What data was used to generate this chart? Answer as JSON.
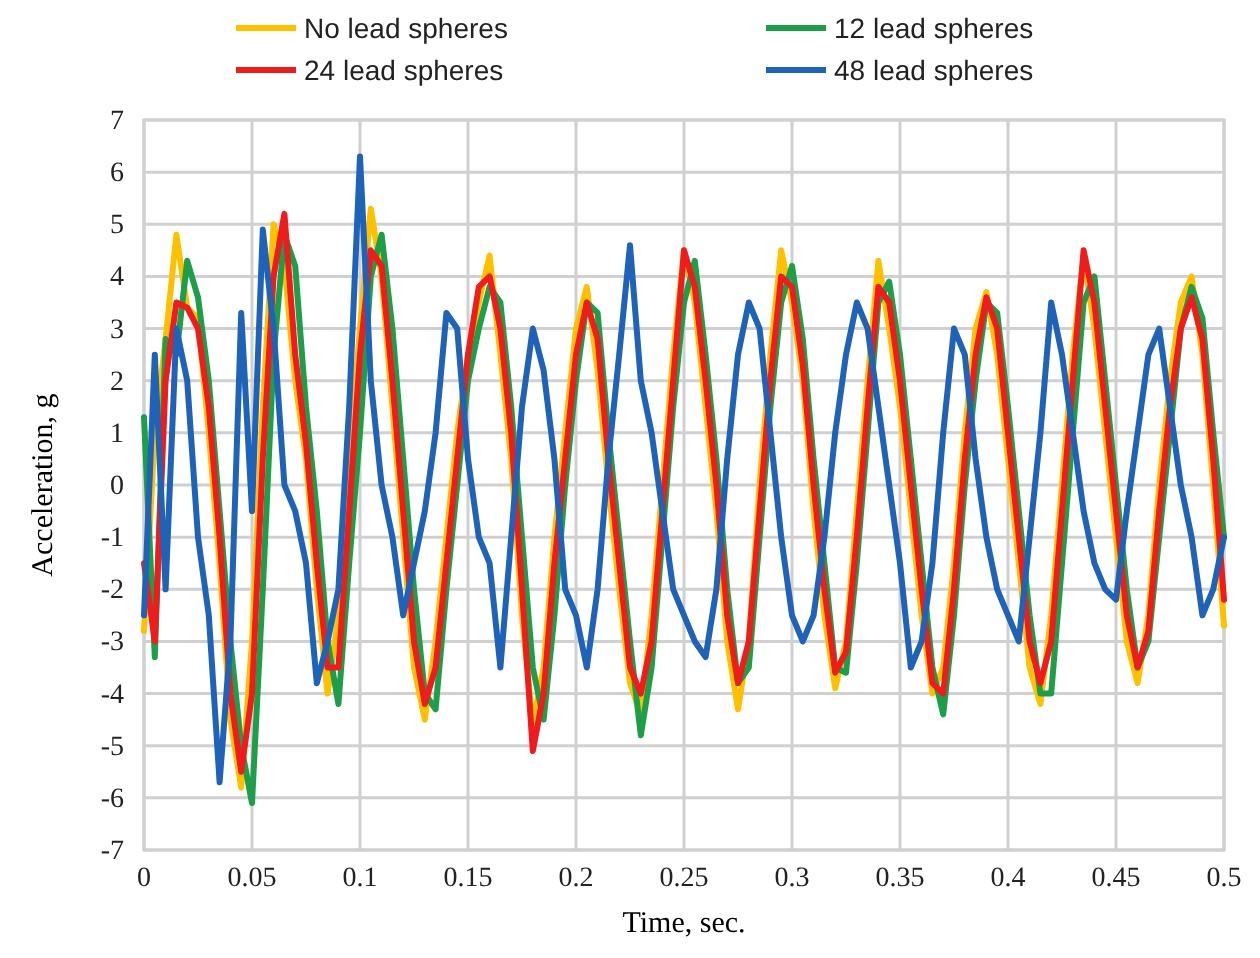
{
  "chart_data": {
    "type": "line",
    "xlabel": "Time, sec.",
    "ylabel": "Acceleration, g",
    "x": [
      0,
      0.005,
      0.01,
      0.015,
      0.02,
      0.025,
      0.03,
      0.035,
      0.04,
      0.045,
      0.05,
      0.055,
      0.06,
      0.065,
      0.07,
      0.075,
      0.08,
      0.085,
      0.09,
      0.095,
      0.1,
      0.105,
      0.11,
      0.115,
      0.12,
      0.125,
      0.13,
      0.135,
      0.14,
      0.145,
      0.15,
      0.155,
      0.16,
      0.165,
      0.17,
      0.175,
      0.18,
      0.185,
      0.19,
      0.195,
      0.2,
      0.205,
      0.21,
      0.215,
      0.22,
      0.225,
      0.23,
      0.235,
      0.24,
      0.245,
      0.25,
      0.255,
      0.26,
      0.265,
      0.27,
      0.275,
      0.28,
      0.285,
      0.29,
      0.295,
      0.3,
      0.305,
      0.31,
      0.315,
      0.32,
      0.325,
      0.33,
      0.335,
      0.34,
      0.345,
      0.35,
      0.355,
      0.36,
      0.365,
      0.37,
      0.375,
      0.38,
      0.385,
      0.39,
      0.395,
      0.4,
      0.405,
      0.41,
      0.415,
      0.42,
      0.425,
      0.43,
      0.435,
      0.44,
      0.445,
      0.45,
      0.455,
      0.46,
      0.465,
      0.47,
      0.475,
      0.48,
      0.485,
      0.49,
      0.495,
      0.5
    ],
    "series": [
      {
        "name": "No lead spheres",
        "color": "#ffc000",
        "values": [
          -2.8,
          1.0,
          2.8,
          4.8,
          3.4,
          3.2,
          1.0,
          -1.5,
          -4.5,
          -5.8,
          -3.0,
          1.5,
          5.0,
          4.2,
          2.0,
          0.5,
          -2.0,
          -4.0,
          -2.5,
          0.5,
          3.0,
          5.3,
          4.0,
          1.5,
          -1.0,
          -3.5,
          -4.5,
          -3.0,
          -1.0,
          1.0,
          2.5,
          3.5,
          4.4,
          2.5,
          0.5,
          -2.5,
          -4.6,
          -3.5,
          -1.0,
          1.0,
          3.0,
          3.8,
          2.2,
          0.0,
          -2.0,
          -3.8,
          -4.4,
          -2.5,
          0.0,
          2.5,
          4.5,
          3.5,
          1.5,
          -0.5,
          -3.0,
          -4.3,
          -3.0,
          0.0,
          2.5,
          4.5,
          3.5,
          2.0,
          -0.5,
          -2.5,
          -3.9,
          -3.0,
          -0.5,
          2.0,
          4.3,
          3.0,
          1.5,
          -0.5,
          -2.5,
          -4.0,
          -3.5,
          -1.5,
          1.0,
          3.0,
          3.7,
          2.5,
          0.5,
          -1.5,
          -3.5,
          -4.2,
          -2.5,
          0.0,
          2.5,
          4.4,
          3.0,
          1.0,
          -1.0,
          -3.0,
          -3.8,
          -2.5,
          0.0,
          2.0,
          3.5,
          4.0,
          2.5,
          0.0,
          -2.7
        ]
      },
      {
        "name": "12 lead spheres",
        "color": "#1e9e48",
        "values": [
          1.3,
          -3.3,
          2.8,
          2.5,
          4.3,
          3.6,
          2.0,
          -0.5,
          -3.0,
          -5.0,
          -6.1,
          -2.0,
          2.5,
          4.8,
          4.2,
          1.5,
          -0.5,
          -3.0,
          -4.2,
          -1.5,
          1.0,
          4.0,
          4.8,
          3.0,
          0.5,
          -2.0,
          -4.0,
          -4.3,
          -2.0,
          0.0,
          2.0,
          3.0,
          3.8,
          3.5,
          1.5,
          -1.0,
          -3.5,
          -4.5,
          -2.5,
          0.0,
          2.0,
          3.5,
          3.3,
          1.0,
          -1.0,
          -3.0,
          -4.8,
          -3.5,
          -1.0,
          1.5,
          3.5,
          4.3,
          2.5,
          0.5,
          -2.0,
          -3.8,
          -3.5,
          -1.0,
          1.5,
          3.5,
          4.2,
          2.8,
          0.5,
          -1.5,
          -3.5,
          -3.6,
          -1.5,
          1.0,
          3.5,
          3.9,
          2.5,
          0.5,
          -1.5,
          -3.5,
          -4.4,
          -2.5,
          0.0,
          2.0,
          3.5,
          3.3,
          1.5,
          -0.5,
          -2.5,
          -4.0,
          -4.0,
          -1.5,
          1.0,
          3.5,
          4.0,
          2.0,
          0.0,
          -2.0,
          -3.5,
          -3.0,
          -1.0,
          1.0,
          3.0,
          3.8,
          3.2,
          1.0,
          -1.0
        ]
      },
      {
        "name": "24 lead spheres",
        "color": "#ee1c1c",
        "values": [
          -1.5,
          -3.0,
          2.0,
          3.5,
          3.4,
          3.0,
          1.5,
          -1.0,
          -4.0,
          -5.5,
          -4.0,
          0.5,
          4.0,
          5.2,
          2.5,
          0.8,
          -1.5,
          -3.5,
          -3.5,
          -0.5,
          2.5,
          4.5,
          4.2,
          2.0,
          -0.5,
          -3.0,
          -4.2,
          -3.5,
          -1.5,
          0.5,
          2.5,
          3.8,
          4.0,
          3.0,
          1.0,
          -2.0,
          -5.1,
          -4.0,
          -1.5,
          0.5,
          2.5,
          3.5,
          2.8,
          0.5,
          -1.5,
          -3.5,
          -4.0,
          -3.0,
          -0.5,
          2.0,
          4.5,
          3.8,
          2.0,
          0.0,
          -2.5,
          -3.8,
          -3.0,
          -0.5,
          2.0,
          4.0,
          3.8,
          2.3,
          0.0,
          -2.0,
          -3.6,
          -3.2,
          -1.0,
          1.5,
          3.8,
          3.5,
          2.0,
          0.0,
          -2.0,
          -3.8,
          -4.0,
          -2.0,
          0.5,
          2.5,
          3.6,
          3.0,
          1.0,
          -1.0,
          -3.0,
          -3.8,
          -3.0,
          -0.5,
          2.0,
          4.5,
          3.5,
          1.5,
          -0.5,
          -2.5,
          -3.5,
          -2.8,
          -0.5,
          1.5,
          3.0,
          3.6,
          2.8,
          0.5,
          -2.2
        ]
      },
      {
        "name": "48 lead spheres",
        "color": "#1f63b8",
        "values": [
          -2.5,
          2.5,
          -2.0,
          3.0,
          2.0,
          -1.0,
          -2.5,
          -5.7,
          -3.0,
          3.3,
          -0.5,
          4.9,
          3.0,
          0.0,
          -0.5,
          -1.5,
          -3.8,
          -3.0,
          -2.0,
          1.5,
          6.3,
          2.0,
          0.0,
          -1.0,
          -2.5,
          -1.5,
          -0.5,
          1.0,
          3.3,
          3.0,
          0.5,
          -1.0,
          -1.5,
          -3.5,
          -1.0,
          1.5,
          3.0,
          2.2,
          0.5,
          -2.0,
          -2.5,
          -3.5,
          -2.0,
          0.5,
          2.5,
          4.6,
          2.0,
          1.0,
          -0.5,
          -2.0,
          -2.5,
          -3.0,
          -3.3,
          -2.0,
          0.5,
          2.5,
          3.5,
          3.0,
          1.0,
          -1.0,
          -2.5,
          -3.0,
          -2.5,
          -1.0,
          1.0,
          2.5,
          3.5,
          3.0,
          1.5,
          0.0,
          -1.5,
          -3.5,
          -3.0,
          -1.5,
          1.0,
          3.0,
          2.5,
          0.5,
          -1.0,
          -2.0,
          -2.5,
          -3.0,
          -1.0,
          1.0,
          3.5,
          2.5,
          1.0,
          -0.5,
          -1.5,
          -2.0,
          -2.2,
          -0.5,
          1.0,
          2.5,
          3.0,
          1.5,
          0.0,
          -1.0,
          -2.5,
          -2.0,
          -1.0
        ]
      }
    ],
    "xlim": [
      0,
      0.5
    ],
    "xticks": [
      0,
      0.05,
      0.1,
      0.15,
      0.2,
      0.25,
      0.3,
      0.35,
      0.4,
      0.45,
      0.5
    ],
    "ylim": [
      -7,
      7
    ],
    "yticks": [
      -7,
      -6,
      -5,
      -4,
      -3,
      -2,
      -1,
      0,
      1,
      2,
      3,
      4,
      5,
      6,
      7
    ],
    "grid": true,
    "legend": "top",
    "line_style": "solid",
    "marker": "none"
  }
}
